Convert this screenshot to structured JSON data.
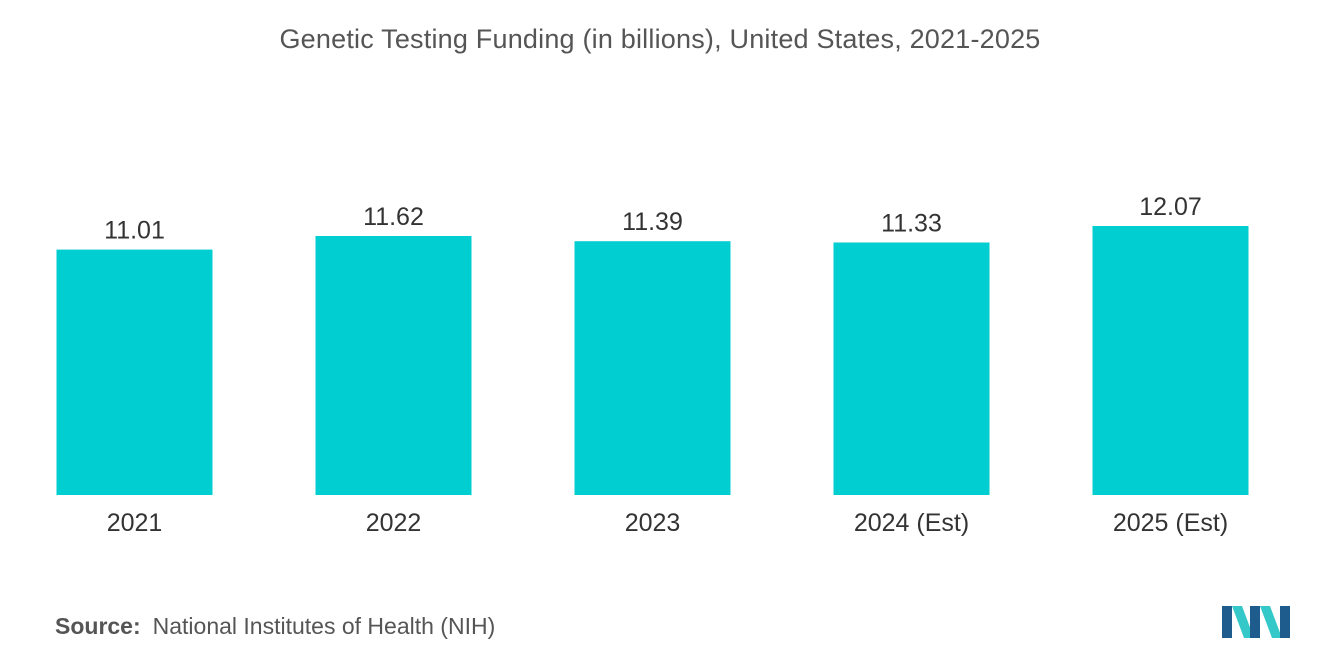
{
  "chart_data": {
    "type": "bar",
    "title": "Genetic Testing Funding (in billions), United States, 2021-2025",
    "xlabel": "",
    "ylabel": "",
    "categories": [
      "2021",
      "2022",
      "2023",
      "2024 (Est)",
      "2025 (Est)"
    ],
    "values": [
      11.01,
      11.62,
      11.39,
      11.33,
      12.07
    ],
    "value_labels": [
      "11.01",
      "11.62",
      "11.39",
      "11.33",
      "12.07"
    ],
    "ylim": [
      0,
      12.07
    ],
    "grid": false,
    "legend": "none",
    "bar_color": "#00CED1"
  },
  "source": {
    "label": "Source:",
    "text": "National Institutes of Health (NIH)"
  },
  "logo": {
    "icon": "mordor-intelligence-logo-icon",
    "colors": [
      "#1D5C8C",
      "#35C8C8"
    ]
  }
}
